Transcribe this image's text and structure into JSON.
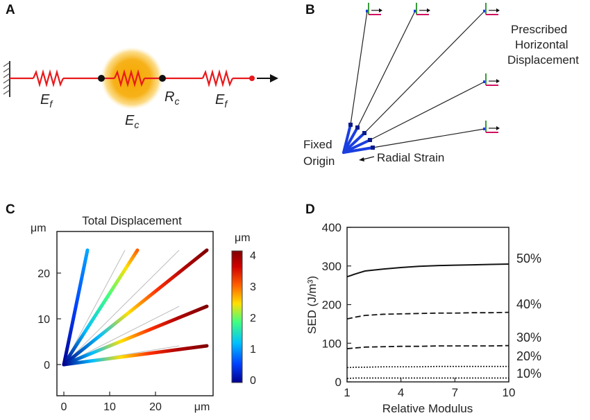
{
  "panel_labels": {
    "a": "A",
    "b": "B",
    "c": "C",
    "d": "D"
  },
  "panel_a": {
    "spring1_label": "E",
    "spring1_sub": "f",
    "core_label": "E",
    "core_sub": "c",
    "radius_label": "R",
    "radius_sub": "c",
    "spring2_label": "E",
    "spring2_sub": "f"
  },
  "panel_b": {
    "prescribed_line1": "Prescribed",
    "prescribed_line2": "Horizontal",
    "prescribed_line3": "Displacement",
    "fixed_line1": "Fixed",
    "fixed_line2": "Origin",
    "radial_strain": "Radial Strain"
  },
  "panel_c": {
    "title": "Total Displacement",
    "y_unit": "μm",
    "x_unit": "μm",
    "colorbar_unit": "μm",
    "y_ticks": [
      "20",
      "10",
      "0"
    ],
    "x_ticks": [
      "0",
      "10",
      "20"
    ],
    "colorbar_ticks": [
      "4",
      "3",
      "2",
      "1",
      "0"
    ],
    "colormap": [
      "#00008f",
      "#0040ff",
      "#00c0ff",
      "#40ff80",
      "#ffe000",
      "#ff6000",
      "#d00000",
      "#800000"
    ]
  },
  "chart_data": {
    "type": "line",
    "xlabel": "Relative Modulus",
    "ylabel": "SED (J/m³)",
    "xlim": [
      1,
      10
    ],
    "ylim": [
      0,
      400
    ],
    "x_ticks": [
      "1",
      "4",
      "7",
      "10"
    ],
    "y_ticks": [
      "0",
      "100",
      "200",
      "300",
      "400"
    ],
    "x": [
      1,
      1.5,
      2,
      3,
      4,
      5,
      6,
      7,
      8,
      9,
      10
    ],
    "series": [
      {
        "name": "50%",
        "style": "solid",
        "values": [
          272,
          280,
          287,
          292,
          296,
          299,
          301,
          302,
          303,
          304,
          305
        ]
      },
      {
        "name": "40%",
        "style": "dashed",
        "values": [
          163,
          168,
          172,
          175,
          176,
          177,
          178,
          178,
          179,
          179,
          180
        ]
      },
      {
        "name": "30%",
        "style": "dashed",
        "values": [
          86,
          88,
          90,
          91,
          92,
          92,
          93,
          93,
          93,
          93,
          94
        ]
      },
      {
        "name": "20%",
        "style": "dotted",
        "values": [
          37,
          38,
          38,
          39,
          39,
          39,
          40,
          40,
          40,
          40,
          40
        ]
      },
      {
        "name": "10%",
        "style": "dotted",
        "values": [
          9,
          10,
          10,
          10,
          10,
          10,
          10,
          10,
          10,
          10,
          10
        ]
      }
    ]
  }
}
